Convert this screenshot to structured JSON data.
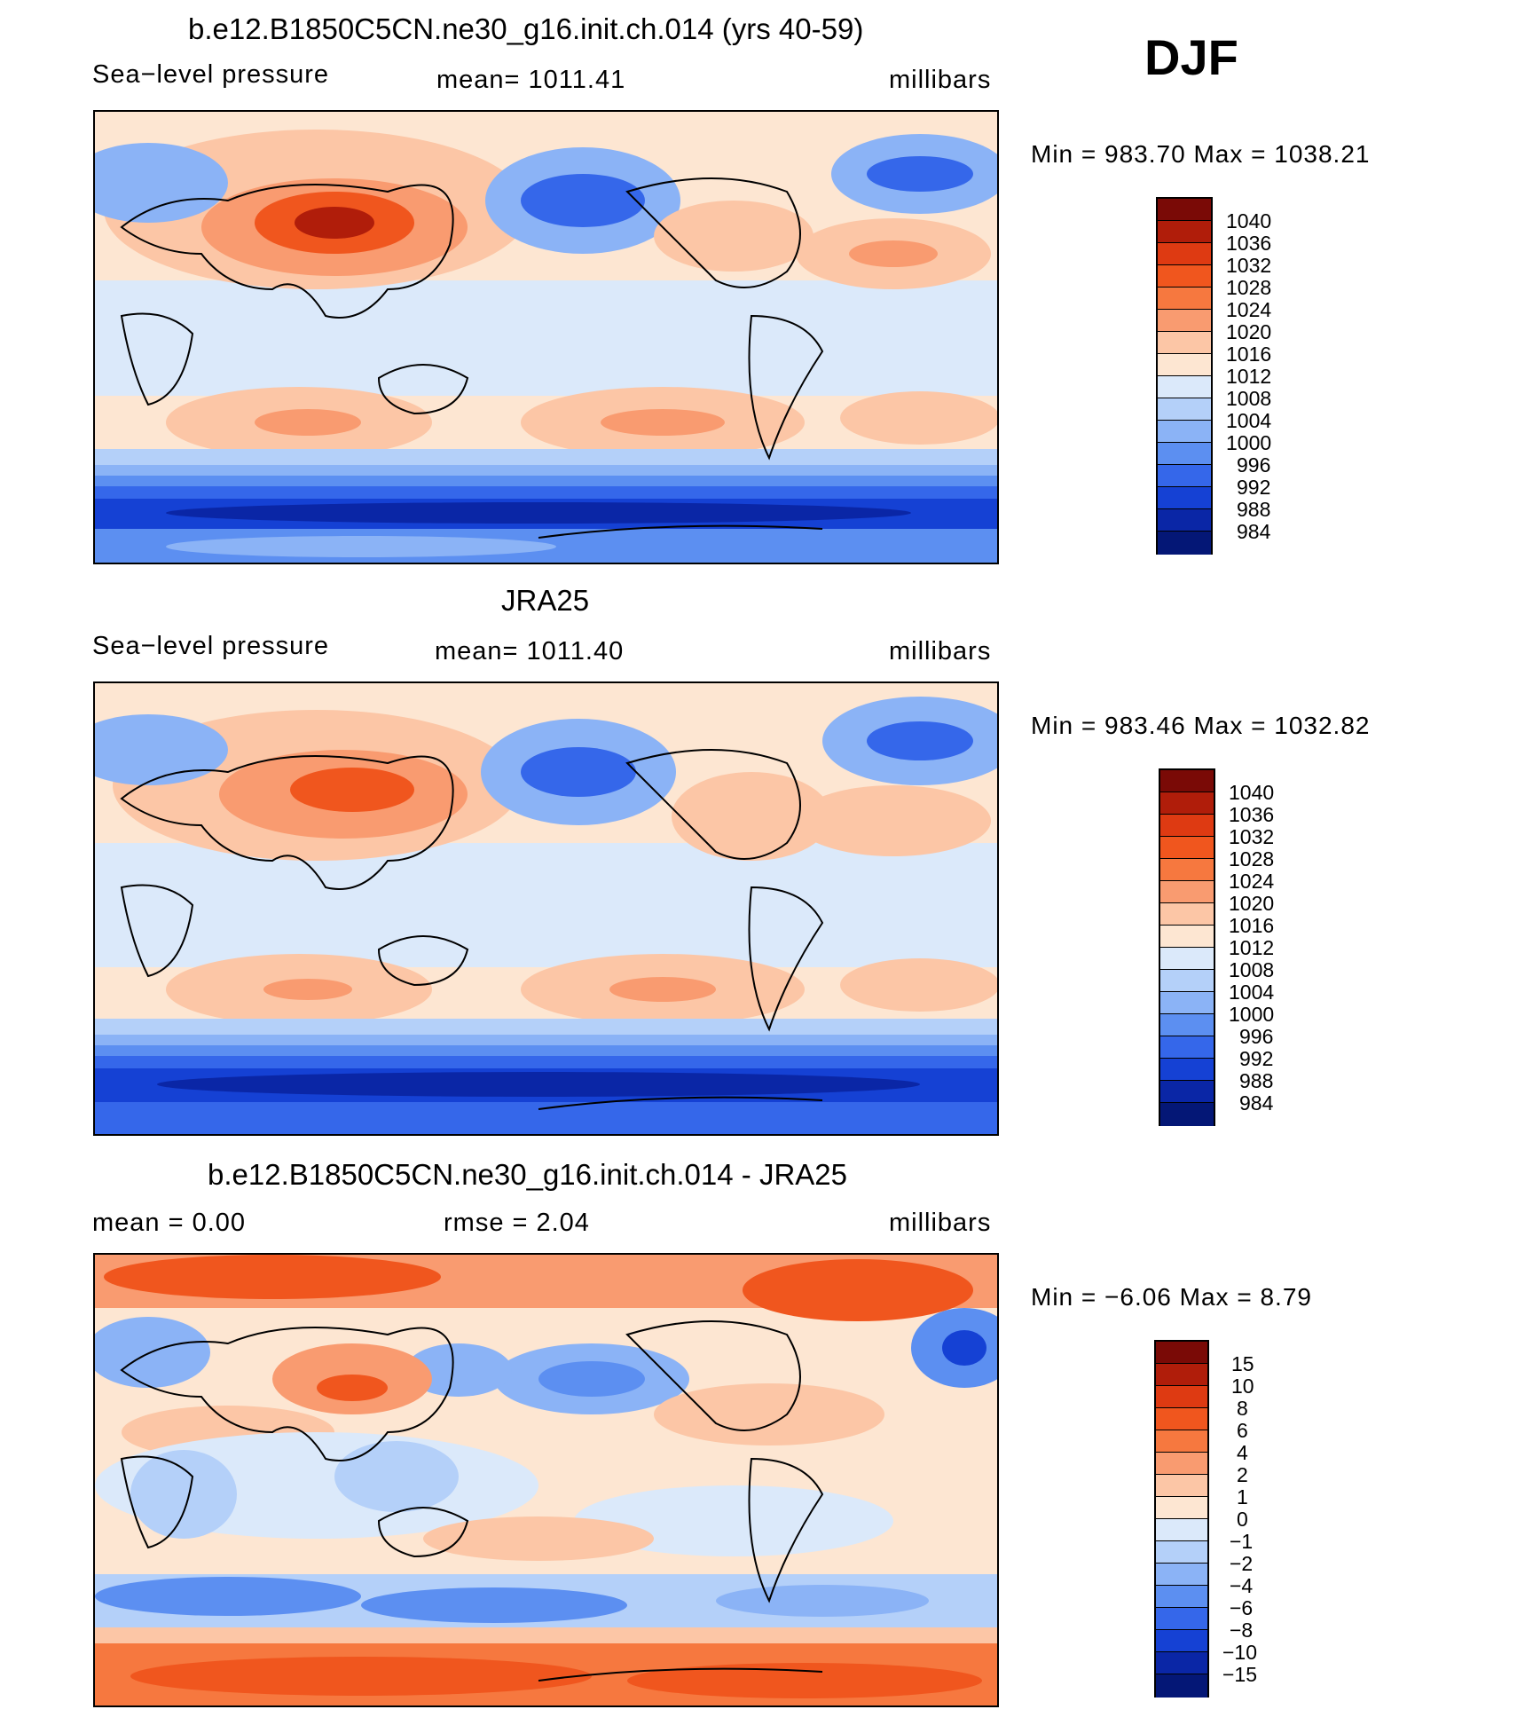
{
  "season": "DJF",
  "panels": [
    {
      "title": "b.e12.B1850C5CN.ne30_g16.init.ch.014 (yrs 40-59)",
      "left_label": "Sea−level pressure",
      "center_label": "mean=  1011.41",
      "units": "millibars",
      "minmax": "Min  =  983.70  Max  =  1038.21",
      "colorbar": [
        "1040",
        "1036",
        "1032",
        "1028",
        "1024",
        "1020",
        "1016",
        "1012",
        "1008",
        "1004",
        "1000",
        "996",
        "992",
        "988",
        "984"
      ]
    },
    {
      "title": "JRA25",
      "left_label": "Sea−level pressure",
      "center_label": "mean=  1011.40",
      "units": "millibars",
      "minmax": "Min  =  983.46  Max  =  1032.82",
      "colorbar": [
        "1040",
        "1036",
        "1032",
        "1028",
        "1024",
        "1020",
        "1016",
        "1012",
        "1008",
        "1004",
        "1000",
        "996",
        "992",
        "988",
        "984"
      ]
    },
    {
      "title": "b.e12.B1850C5CN.ne30_g16.init.ch.014 - JRA25",
      "left_label": "mean  =      0.00",
      "center_label": "rmse  =     2.04",
      "units": "millibars",
      "minmax": "Min  =     −6.06  Max  =       8.79",
      "colorbar": [
        "15",
        "10",
        "8",
        "6",
        "4",
        "2",
        "1",
        "0",
        "−1",
        "−2",
        "−4",
        "−6",
        "−8",
        "−10",
        "−15"
      ]
    }
  ],
  "colors": [
    "#7a0a06",
    "#b01d0a",
    "#de3a12",
    "#f0561e",
    "#f6783f",
    "#f99b70",
    "#fcc6a6",
    "#fde6d2",
    "#dbe9fa",
    "#b4d0f9",
    "#8bb3f6",
    "#5c8ff1",
    "#3567ea",
    "#1541d4",
    "#0a26a6",
    "#041776"
  ]
}
